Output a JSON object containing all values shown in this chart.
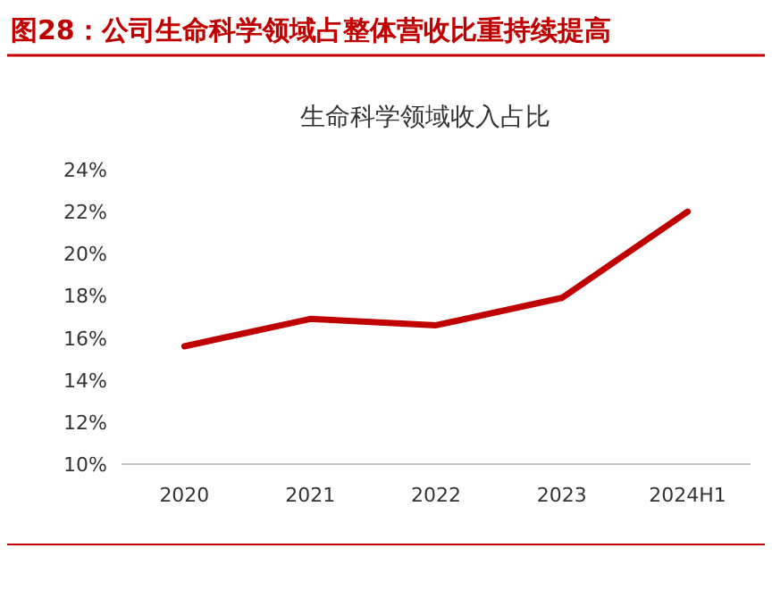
{
  "chart_data": {
    "type": "line",
    "title": "图28：公司生命科学领域占整体营收比重持续提高",
    "subtitle": "生命科学领域收入占比",
    "categories": [
      "2020",
      "2021",
      "2022",
      "2023",
      "2024H1"
    ],
    "series": [
      {
        "color": "#c00000",
        "values": [
          15.6,
          16.9,
          16.6,
          17.9,
          22.0
        ]
      }
    ],
    "ylim": [
      10,
      24
    ],
    "yticks": [
      {
        "value": 10,
        "label": "10%"
      },
      {
        "value": 12,
        "label": "12%"
      },
      {
        "value": 14,
        "label": "14%"
      },
      {
        "value": 16,
        "label": "16%"
      },
      {
        "value": 18,
        "label": "18%"
      },
      {
        "value": 20,
        "label": "20%"
      },
      {
        "value": 22,
        "label": "22%"
      },
      {
        "value": 24,
        "label": "24%"
      }
    ],
    "grid": false,
    "marker": "none",
    "line_style": "solid"
  }
}
